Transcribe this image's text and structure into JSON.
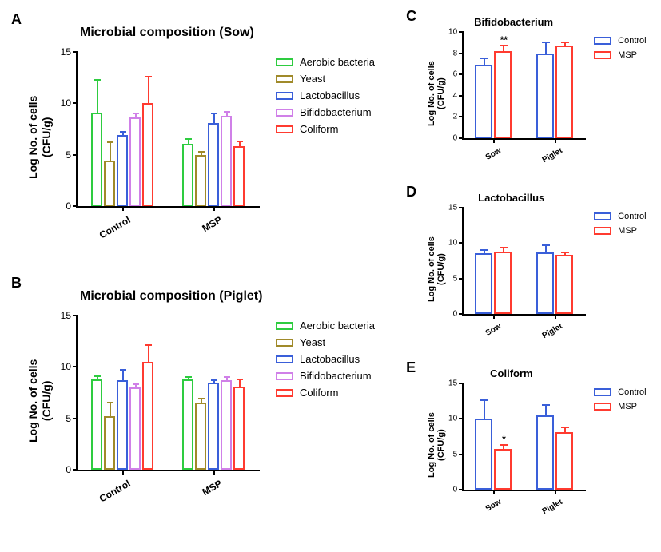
{
  "colors": {
    "aerobic": "#2ecc40",
    "yeast": "#a08a2a",
    "lacto": "#3a5fd9",
    "bifido": "#d080e8",
    "coliform": "#ff3b30",
    "control": "#3a5fd9",
    "msp": "#ff3b30",
    "axis": "#000000",
    "bg": "#ffffff"
  },
  "panelA": {
    "label": "A",
    "title": "Microbial composition (Sow)",
    "ylabel": "Log No. of cells\n(CFU/g)",
    "ylim": [
      0,
      15
    ],
    "ytick_step": 5,
    "groups": [
      "Control",
      "MSP"
    ],
    "series": [
      {
        "name": "Aerobic bacteria",
        "colorKey": "aerobic"
      },
      {
        "name": "Yeast",
        "colorKey": "yeast"
      },
      {
        "name": "Lactobacillus",
        "colorKey": "lacto"
      },
      {
        "name": "Bifidobacterium",
        "colorKey": "bifido"
      },
      {
        "name": "Coliform",
        "colorKey": "coliform"
      }
    ],
    "values": [
      [
        9.1,
        4.4,
        6.9,
        8.6,
        10.0
      ],
      [
        6.1,
        5.0,
        8.1,
        8.8,
        5.8
      ]
    ],
    "errors": [
      [
        3.2,
        1.8,
        0.3,
        0.4,
        2.6
      ],
      [
        0.4,
        0.3,
        0.9,
        0.4,
        0.5
      ]
    ]
  },
  "panelB": {
    "label": "B",
    "title": "Microbial composition (Piglet)",
    "ylabel": "Log No. of cells\n(CFU/g)",
    "ylim": [
      0,
      15
    ],
    "ytick_step": 5,
    "groups": [
      "Control",
      "MSP"
    ],
    "series": [
      {
        "name": "Aerobic bacteria",
        "colorKey": "aerobic"
      },
      {
        "name": "Yeast",
        "colorKey": "yeast"
      },
      {
        "name": "Lactobacillus",
        "colorKey": "lacto"
      },
      {
        "name": "Bifidobacterium",
        "colorKey": "bifido"
      },
      {
        "name": "Coliform",
        "colorKey": "coliform"
      }
    ],
    "values": [
      [
        8.8,
        5.2,
        8.7,
        8.0,
        10.5
      ],
      [
        8.8,
        6.5,
        8.5,
        8.7,
        8.1
      ]
    ],
    "errors": [
      [
        0.3,
        1.3,
        1.0,
        0.3,
        1.6
      ],
      [
        0.2,
        0.4,
        0.2,
        0.3,
        0.7
      ]
    ]
  },
  "panelC": {
    "label": "C",
    "title": "Bifidobacterium",
    "ylabel": "Log No. of cells\n(CFU/g)",
    "ylim": [
      0,
      10
    ],
    "ytick_step": 2,
    "groups": [
      "Sow",
      "Piglet"
    ],
    "series": [
      {
        "name": "Control",
        "colorKey": "control"
      },
      {
        "name": "MSP",
        "colorKey": "msp"
      }
    ],
    "values": [
      [
        6.9,
        8.2
      ],
      [
        8.0,
        8.7
      ]
    ],
    "errors": [
      [
        0.6,
        0.5
      ],
      [
        1.0,
        0.3
      ]
    ],
    "sig": {
      "group": 0,
      "bar": 1,
      "text": "**"
    }
  },
  "panelD": {
    "label": "D",
    "title": "Lactobacillus",
    "ylabel": "Log No. of cells\n(CFU/g)",
    "ylim": [
      0,
      15
    ],
    "ytick_step": 5,
    "groups": [
      "Sow",
      "Piglet"
    ],
    "series": [
      {
        "name": "Control",
        "colorKey": "control"
      },
      {
        "name": "MSP",
        "colorKey": "msp"
      }
    ],
    "values": [
      [
        8.6,
        8.8
      ],
      [
        8.7,
        8.4
      ]
    ],
    "errors": [
      [
        0.4,
        0.6
      ],
      [
        1.0,
        0.3
      ]
    ]
  },
  "panelE": {
    "label": "E",
    "title": "Coliform",
    "ylabel": "Log No. of cells\n(CFU/g)",
    "ylim": [
      0,
      15
    ],
    "ytick_step": 5,
    "groups": [
      "Sow",
      "Piglet"
    ],
    "series": [
      {
        "name": "Control",
        "colorKey": "control"
      },
      {
        "name": "MSP",
        "colorKey": "msp"
      }
    ],
    "values": [
      [
        10.0,
        5.8
      ],
      [
        10.5,
        8.1
      ]
    ],
    "errors": [
      [
        2.6,
        0.5
      ],
      [
        1.4,
        0.7
      ]
    ],
    "sig": {
      "group": 0,
      "bar": 1,
      "text": "*"
    }
  }
}
